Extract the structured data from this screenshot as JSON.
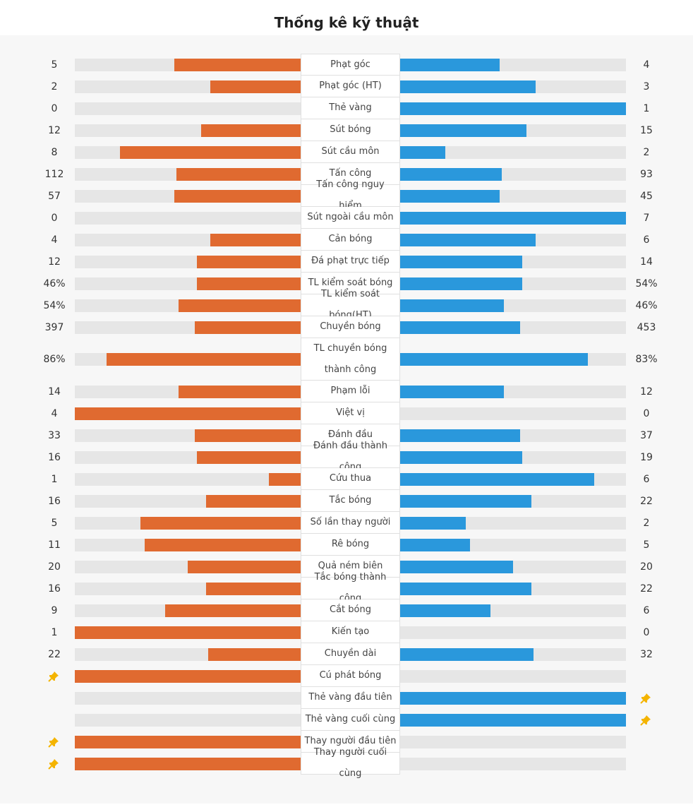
{
  "title": "Thống kê kỹ thuật",
  "colors": {
    "home": "#e06a30",
    "away": "#2a98dc",
    "track": "#e6e6e6",
    "pin": "#f4b400"
  },
  "stats": [
    {
      "label": "Phạt góc",
      "home": "5",
      "away": "4",
      "home_ratio": 0.56,
      "away_ratio": 0.44
    },
    {
      "label": "Phạt góc (HT)",
      "home": "2",
      "away": "3",
      "home_ratio": 0.4,
      "away_ratio": 0.6
    },
    {
      "label": "Thẻ vàng",
      "home": "0",
      "away": "1",
      "home_ratio": 0,
      "away_ratio": 1
    },
    {
      "label": "Sút bóng",
      "home": "12",
      "away": "15",
      "home_ratio": 0.44,
      "away_ratio": 0.56
    },
    {
      "label": "Sút cầu môn",
      "home": "8",
      "away": "2",
      "home_ratio": 0.8,
      "away_ratio": 0.2
    },
    {
      "label": "Tấn công",
      "home": "112",
      "away": "93",
      "home_ratio": 0.55,
      "away_ratio": 0.45
    },
    {
      "label": "Tấn công nguy hiểm",
      "home": "57",
      "away": "45",
      "home_ratio": 0.56,
      "away_ratio": 0.44
    },
    {
      "label": "Sút ngoài cầu môn",
      "home": "0",
      "away": "7",
      "home_ratio": 0,
      "away_ratio": 1
    },
    {
      "label": "Cản bóng",
      "home": "4",
      "away": "6",
      "home_ratio": 0.4,
      "away_ratio": 0.6
    },
    {
      "label": "Đá phạt trực tiếp",
      "home": "12",
      "away": "14",
      "home_ratio": 0.46,
      "away_ratio": 0.54
    },
    {
      "label": "TL kiểm soát bóng",
      "home": "46%",
      "away": "54%",
      "home_ratio": 0.46,
      "away_ratio": 0.54
    },
    {
      "label": "TL kiểm soát bóng(HT)",
      "home": "54%",
      "away": "46%",
      "home_ratio": 0.54,
      "away_ratio": 0.46
    },
    {
      "label": "Chuyền bóng",
      "home": "397",
      "away": "453",
      "home_ratio": 0.47,
      "away_ratio": 0.53
    },
    {
      "label": "TL chuyền bóng thành công",
      "home": "86%",
      "away": "83%",
      "home_ratio": 0.86,
      "away_ratio": 0.83,
      "tall": true
    },
    {
      "label": "Phạm lỗi",
      "home": "14",
      "away": "12",
      "home_ratio": 0.54,
      "away_ratio": 0.46
    },
    {
      "label": "Việt vị",
      "home": "4",
      "away": "0",
      "home_ratio": 1,
      "away_ratio": 0
    },
    {
      "label": "Đánh đầu",
      "home": "33",
      "away": "37",
      "home_ratio": 0.47,
      "away_ratio": 0.53
    },
    {
      "label": "Đánh đầu thành công",
      "home": "16",
      "away": "19",
      "home_ratio": 0.46,
      "away_ratio": 0.54
    },
    {
      "label": "Cứu thua",
      "home": "1",
      "away": "6",
      "home_ratio": 0.14,
      "away_ratio": 0.86
    },
    {
      "label": "Tắc bóng",
      "home": "16",
      "away": "22",
      "home_ratio": 0.42,
      "away_ratio": 0.58
    },
    {
      "label": "Số lần thay người",
      "home": "5",
      "away": "2",
      "home_ratio": 0.71,
      "away_ratio": 0.29
    },
    {
      "label": "Rê bóng",
      "home": "11",
      "away": "5",
      "home_ratio": 0.69,
      "away_ratio": 0.31
    },
    {
      "label": "Quả ném biên",
      "home": "20",
      "away": "20",
      "home_ratio": 0.5,
      "away_ratio": 0.5
    },
    {
      "label": "Tắc bóng thành công",
      "home": "16",
      "away": "22",
      "home_ratio": 0.42,
      "away_ratio": 0.58
    },
    {
      "label": "Cắt bóng",
      "home": "9",
      "away": "6",
      "home_ratio": 0.6,
      "away_ratio": 0.4
    },
    {
      "label": "Kiến tạo",
      "home": "1",
      "away": "0",
      "home_ratio": 1,
      "away_ratio": 0
    },
    {
      "label": "Chuyền dài",
      "home": "22",
      "away": "32",
      "home_ratio": 0.41,
      "away_ratio": 0.59
    },
    {
      "label": "Cú phát bóng",
      "home_pin": true,
      "home_ratio": 1,
      "away_ratio": 0
    },
    {
      "label": "Thẻ vàng đầu tiên",
      "away_pin": true,
      "home_ratio": 0,
      "away_ratio": 1
    },
    {
      "label": "Thẻ vàng cuối cùng",
      "away_pin": true,
      "home_ratio": 0,
      "away_ratio": 1
    },
    {
      "label": "Thay người đầu tiên",
      "home_pin": true,
      "home_ratio": 1,
      "away_ratio": 0
    },
    {
      "label": "Thay người cuối cùng",
      "home_pin": true,
      "home_ratio": 1,
      "away_ratio": 0
    }
  ]
}
